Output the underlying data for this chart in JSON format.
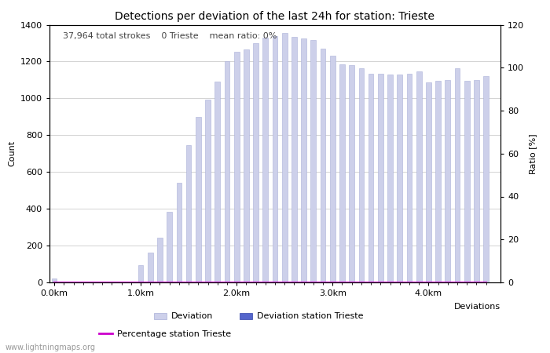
{
  "title": "Detections per deviation of the last 24h for station: Trieste",
  "subtitle": "37,964 total strokes    0 Trieste    mean ratio: 0%",
  "xlabel": "Deviations",
  "ylabel_left": "Count",
  "ylabel_right": "Ratio [%]",
  "xlim_left": -0.5,
  "xlim_right": 46.5,
  "ylim_left": [
    0,
    1400
  ],
  "ylim_right": [
    0,
    120
  ],
  "yticks_left": [
    0,
    200,
    400,
    600,
    800,
    1000,
    1200,
    1400
  ],
  "yticks_right": [
    0,
    20,
    40,
    60,
    80,
    100,
    120
  ],
  "xtick_labels": [
    "0.0km",
    "1.0km",
    "2.0km",
    "3.0km",
    "4.0km"
  ],
  "xtick_positions": [
    0,
    9,
    19,
    29,
    39
  ],
  "bar_color": "#cdd0ea",
  "bar_edge_color": "#aab0d8",
  "station_bar_color": "#5566cc",
  "station_bar_edge_color": "#3344aa",
  "percentage_line_color": "#cc00cc",
  "grid_color": "#cccccc",
  "background_color": "#ffffff",
  "watermark": "www.lightningmaps.org",
  "bar_values": [
    20,
    0,
    0,
    0,
    0,
    0,
    0,
    0,
    0,
    95,
    160,
    245,
    385,
    540,
    745,
    900,
    995,
    1090,
    1200,
    1255,
    1265,
    1300,
    1330,
    1340,
    1355,
    1335,
    1325,
    1315,
    1270,
    1230,
    1185,
    1180,
    1165,
    1135,
    1135,
    1130,
    1130,
    1135,
    1145,
    1085,
    1095,
    1100,
    1165,
    1095,
    1100,
    1120
  ],
  "station_bar_values": [
    0,
    0,
    0,
    0,
    0,
    0,
    0,
    0,
    0,
    0,
    0,
    0,
    0,
    0,
    0,
    0,
    0,
    0,
    0,
    0,
    0,
    0,
    0,
    0,
    0,
    0,
    0,
    0,
    0,
    0,
    0,
    0,
    0,
    0,
    0,
    0,
    0,
    0,
    0,
    0,
    0,
    0,
    0,
    0,
    0,
    0
  ],
  "percentage_values": [
    0,
    0,
    0,
    0,
    0,
    0,
    0,
    0,
    0,
    0,
    0,
    0,
    0,
    0,
    0,
    0,
    0,
    0,
    0,
    0,
    0,
    0,
    0,
    0,
    0,
    0,
    0,
    0,
    0,
    0,
    0,
    0,
    0,
    0,
    0,
    0,
    0,
    0,
    0,
    0,
    0,
    0,
    0,
    0,
    0,
    0
  ],
  "legend_entries": [
    {
      "label": "Deviation",
      "color": "#cdd0ea",
      "edge": "#aab0d8",
      "type": "bar"
    },
    {
      "label": "Deviation station Trieste",
      "color": "#5566cc",
      "edge": "#3344aa",
      "type": "bar"
    },
    {
      "label": "Percentage station Trieste",
      "color": "#cc00cc",
      "type": "line"
    }
  ],
  "title_fontsize": 10,
  "axis_fontsize": 8,
  "tick_fontsize": 8,
  "legend_fontsize": 8,
  "subtitle_fontsize": 8
}
